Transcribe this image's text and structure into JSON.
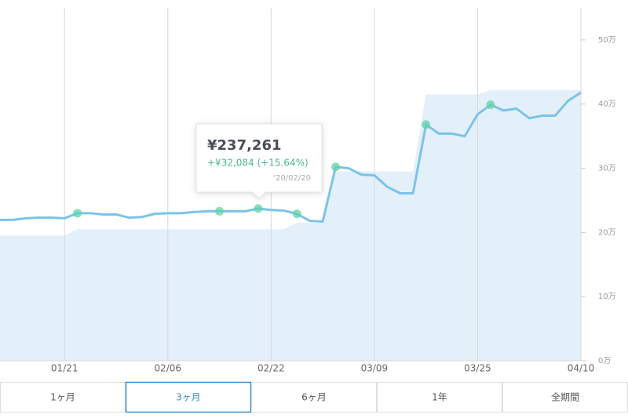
{
  "chart_data": {
    "type": "line",
    "x": [
      "01/11",
      "01/13",
      "01/15",
      "01/17",
      "01/19",
      "01/21",
      "01/23",
      "01/25",
      "01/27",
      "01/29",
      "01/31",
      "02/02",
      "02/04",
      "02/06",
      "02/08",
      "02/10",
      "02/12",
      "02/14",
      "02/16",
      "02/18",
      "02/20",
      "02/22",
      "02/24",
      "02/26",
      "02/28",
      "03/01",
      "03/03",
      "03/05",
      "03/07",
      "03/09",
      "03/11",
      "03/13",
      "03/15",
      "03/17",
      "03/19",
      "03/21",
      "03/23",
      "03/25",
      "03/27",
      "03/29",
      "03/31",
      "04/02",
      "04/04",
      "04/06",
      "04/08",
      "04/10"
    ],
    "series": [
      {
        "color": "#7cc3e8",
        "values": [
          219500,
          219500,
          222000,
          223000,
          223000,
          222000,
          230000,
          230000,
          228000,
          228000,
          223000,
          224000,
          229000,
          230000,
          230000,
          231700,
          233000,
          233000,
          233000,
          233000,
          237261,
          235000,
          234000,
          229000,
          218000,
          217000,
          302000,
          300000,
          290000,
          289000,
          271000,
          261000,
          261000,
          368000,
          354000,
          354000,
          350000,
          384000,
          399000,
          390000,
          393000,
          378000,
          382000,
          382000,
          405000,
          418000
        ]
      },
      {
        "color": "#e3f0fa",
        "values": [
          195000,
          195000,
          195000,
          195000,
          195000,
          195000,
          205000,
          205000,
          205000,
          205000,
          205000,
          205000,
          205000,
          205000,
          205000,
          205000,
          205000,
          205000,
          205000,
          205000,
          205000,
          205000,
          205000,
          215000,
          215000,
          215000,
          295000,
          295000,
          295000,
          295000,
          295000,
          295000,
          295000,
          415000,
          415000,
          415000,
          415000,
          415000,
          422000,
          422000,
          422000,
          422000,
          422000,
          422000,
          422000,
          422000
        ]
      }
    ],
    "dots": {
      "color": "#5fd3a8",
      "values": [
        null,
        null,
        null,
        null,
        null,
        null,
        230000,
        null,
        null,
        null,
        null,
        null,
        null,
        null,
        null,
        null,
        null,
        233000,
        null,
        null,
        237261,
        null,
        null,
        229000,
        null,
        null,
        302000,
        null,
        null,
        null,
        null,
        null,
        null,
        368000,
        null,
        null,
        null,
        null,
        399000,
        null,
        null,
        null,
        null,
        null,
        null,
        null
      ]
    },
    "xticks": [
      "01/21",
      "02/06",
      "02/22",
      "03/09",
      "03/25",
      "04/10"
    ],
    "ylim": [
      0,
      550000
    ],
    "yticks": [
      {
        "value": 0,
        "label": "0万"
      },
      {
        "value": 100000,
        "label": "10万"
      },
      {
        "value": 200000,
        "label": "20万"
      },
      {
        "value": 300000,
        "label": "30万"
      },
      {
        "value": 400000,
        "label": "40万"
      },
      {
        "value": 500000,
        "label": "50万"
      }
    ],
    "grid": true,
    "tooltip": {
      "amount": "¥237,261",
      "change": "+¥32,084 (+15.64%)",
      "date": "'20/02/20"
    },
    "periods": [
      "1ヶ月",
      "3ヶ月",
      "6ヶ月",
      "1年",
      "全期間"
    ],
    "selected_period": 1
  }
}
